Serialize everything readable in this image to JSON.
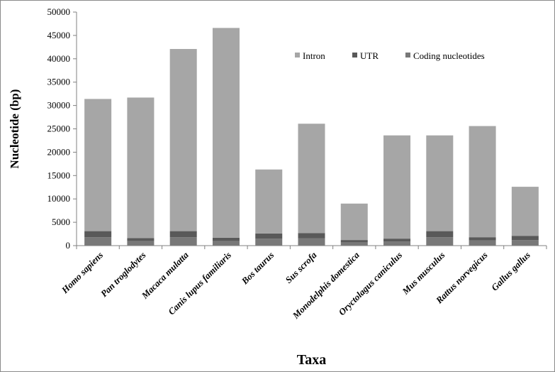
{
  "chart_data": {
    "type": "bar",
    "stacked": true,
    "categories": [
      "Homo sapiens",
      "Pan troglodytes",
      "Macaca mulatta",
      "Canis lupus familiaris",
      "Bos taurus",
      "Sus scrofa",
      "Monodelphis domestica",
      "Oryctolagus caniculus",
      "Mus musculus",
      "Rattus norvegicus",
      "Gallus gallus"
    ],
    "series": [
      {
        "name": "Coding nucleotides",
        "color": "#787878",
        "values": [
          1800,
          1000,
          1800,
          1000,
          1500,
          1600,
          700,
          900,
          1800,
          1100,
          1200
        ]
      },
      {
        "name": "UTR",
        "color": "#595959",
        "values": [
          1300,
          600,
          1300,
          700,
          1100,
          1100,
          500,
          600,
          1300,
          700,
          900
        ]
      },
      {
        "name": "Intron",
        "color": "#a6a6a6",
        "values": [
          28300,
          30100,
          39000,
          44900,
          13700,
          23400,
          7800,
          22100,
          20500,
          23800,
          10500
        ]
      }
    ],
    "legend_order": [
      "Intron",
      "UTR",
      "Coding nucleotides"
    ],
    "legend_position": "top-right",
    "xlabel": "Taxa",
    "ylabel": "Nucleotide (bp)",
    "ylim": [
      0,
      50000
    ],
    "yticks": [
      0,
      5000,
      10000,
      15000,
      20000,
      25000,
      30000,
      35000,
      40000,
      45000,
      50000
    ],
    "grid": false
  }
}
